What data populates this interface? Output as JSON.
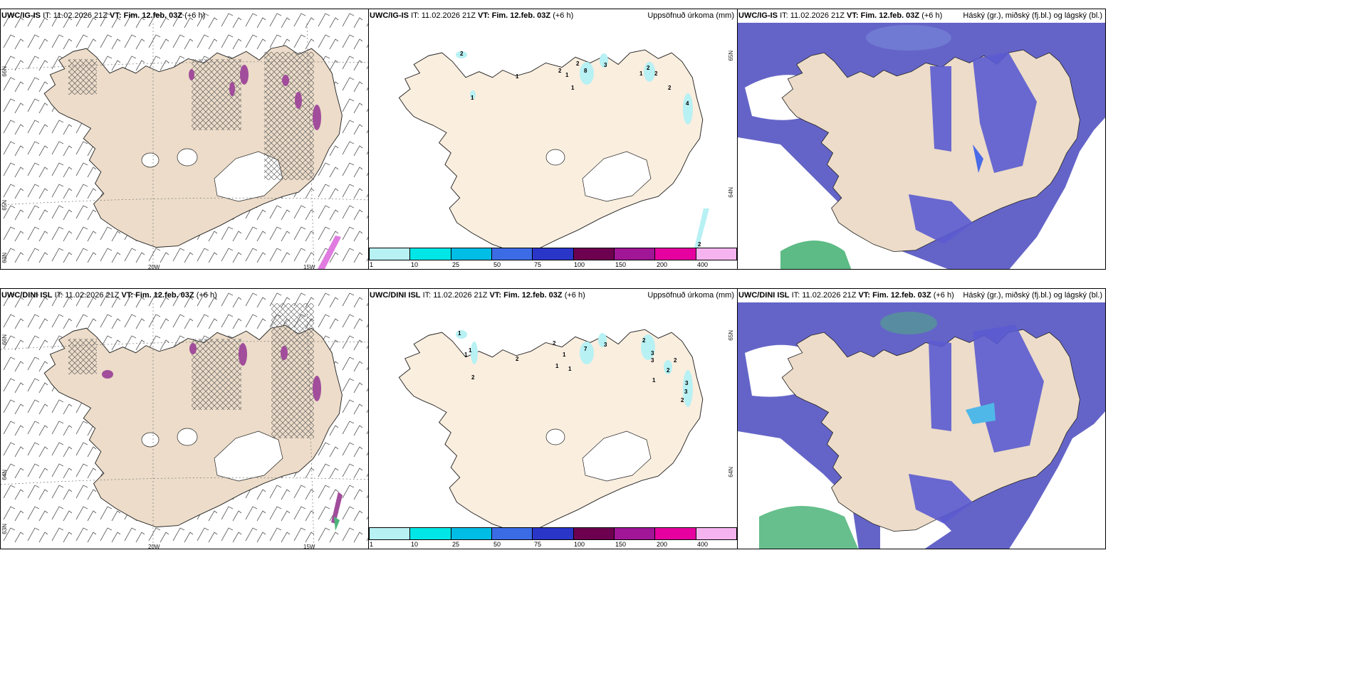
{
  "colors": {
    "land": "#ecdcc9",
    "land_light": "#faeedf",
    "coast": "#222222",
    "precip": "#b7f1f4",
    "cloud_low": "#6464c8",
    "cloud_med": "#4a6be8",
    "cloud_high_green": "#4bb478",
    "magenta": "#e07be0"
  },
  "rows": [
    {
      "model": "UWC/IG-IS",
      "panel1": {
        "header": {
          "model": "UWC/IG-IS",
          "it": "IT: 11.02.2026 21Z",
          "vt_label": "VT:",
          "vt_value": "Fim. 12.feb. 03Z",
          "lead": "(+6 h)"
        },
        "lat_labels": [
          "66N",
          "65N",
          "63N"
        ],
        "lon_labels": [
          "20W",
          "15W"
        ]
      },
      "panel2": {
        "header": {
          "model": "UWC/IG-IS",
          "it": "IT: 11.02.2026 21Z",
          "vt_label": "VT:",
          "vt_value": "Fim. 12.feb. 03Z",
          "lead": "(+6 h)",
          "title": "Uppsöfnuð úrkoma (mm)"
        },
        "lat_labels": [
          "65N",
          "64N"
        ],
        "point_values": [
          "2",
          "1",
          "1",
          "2",
          "1",
          "1",
          "2",
          "8",
          "3",
          "1",
          "2",
          "2",
          "2",
          "4",
          "2"
        ]
      },
      "panel3": {
        "header": {
          "model": "UWC/IG-IS",
          "it": "IT: 11.02.2026 21Z",
          "vt_label": "VT:",
          "vt_value": "Fim. 12.feb. 03Z",
          "lead": "(+6 h)",
          "title": "Háský (gr.), miðský (fj.bl.) og lágský (bl.)"
        }
      }
    },
    {
      "model": "UWC/DINI ISL",
      "panel1": {
        "header": {
          "model": "UWC/DINI ISL",
          "it": "IT: 11.02.2026 21Z",
          "vt_label": "VT:",
          "vt_value": "Fim. 12.feb. 03Z",
          "lead": "(+6 h)"
        },
        "lat_labels": [
          "66N",
          "64N",
          "63N"
        ],
        "lon_labels": [
          "20W",
          "15W"
        ]
      },
      "panel2": {
        "header": {
          "model": "UWC/DINI ISL",
          "it": "IT: 11.02.2026 21Z",
          "vt_label": "VT:",
          "vt_value": "Fim. 12.feb. 03Z",
          "lead": "(+6 h)",
          "title": "Uppsöfnuð úrkoma (mm)"
        },
        "lat_labels": [
          "65N",
          "64N"
        ],
        "point_values": [
          "1",
          "1",
          "1",
          "2",
          "2",
          "2",
          "1",
          "1",
          "1",
          "7",
          "3",
          "2",
          "3",
          "3",
          "2",
          "2",
          "1",
          "3",
          "3",
          "2"
        ]
      },
      "panel3": {
        "header": {
          "model": "UWC/DINI ISL",
          "it": "IT: 11.02.2026 21Z",
          "vt_label": "VT:",
          "vt_value": "Fim. 12.feb. 03Z",
          "lead": "(+6 h)",
          "title": "Háský (gr.), miðský (fj.bl.) og lágský (bl.)"
        }
      }
    }
  ],
  "colorbar": {
    "colors": [
      "#b7f1f4",
      "#00e6e6",
      "#00bde6",
      "#3c6be6",
      "#2a36c8",
      "#6e0050",
      "#a01696",
      "#e600a0",
      "#f5b4f0"
    ],
    "ticks": [
      "1",
      "10",
      "25",
      "50",
      "75",
      "100",
      "150",
      "200",
      "400"
    ]
  }
}
